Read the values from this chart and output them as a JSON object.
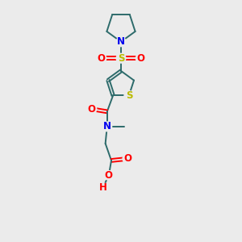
{
  "bg_color": "#ebebeb",
  "bond_color": "#2d6b6b",
  "N_color": "#0000ee",
  "O_color": "#ff0000",
  "S_color": "#bbbb00",
  "H_color": "#ff0000",
  "bond_lw": 1.4,
  "font_size": 8.5,
  "xlim": [
    0,
    10
  ],
  "ylim": [
    0,
    14
  ]
}
